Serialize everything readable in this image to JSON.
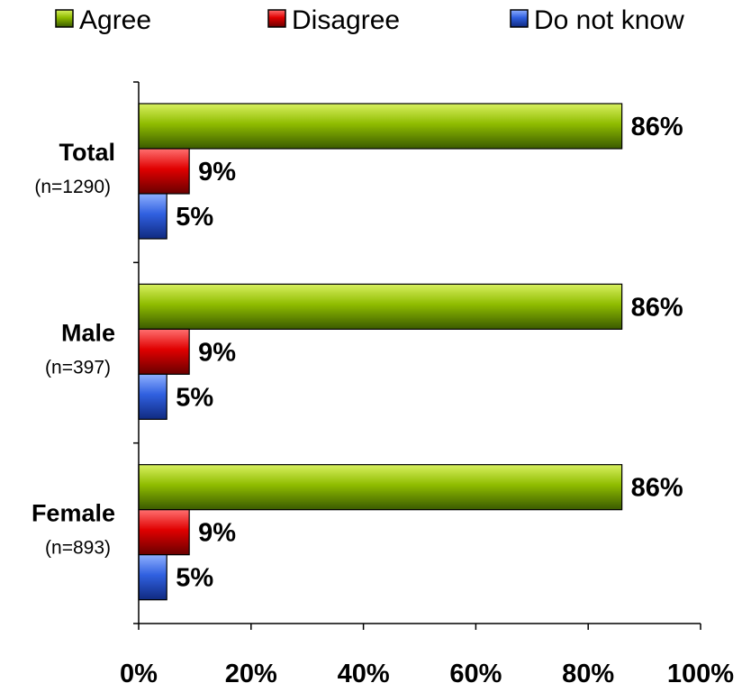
{
  "chart_data": {
    "type": "bar",
    "orientation": "horizontal",
    "categories": [
      "Total",
      "Male",
      "Female"
    ],
    "category_subtitles": [
      "(n=1290)",
      "(n=397)",
      "(n=893)"
    ],
    "series": [
      {
        "name": "Agree",
        "color": "#8fbc00",
        "values": [
          86,
          86,
          86
        ],
        "labels": [
          "86%",
          "86%",
          "86%"
        ]
      },
      {
        "name": "Disagree",
        "color": "#e00000",
        "values": [
          9,
          9,
          9
        ],
        "labels": [
          "9%",
          "9%",
          "9%"
        ]
      },
      {
        "name": "Do not know",
        "color": "#3060e0",
        "values": [
          5,
          5,
          5
        ],
        "labels": [
          "5%",
          "5%",
          "5%"
        ]
      }
    ],
    "xlim": [
      0,
      100
    ],
    "xticks": [
      0,
      20,
      40,
      60,
      80,
      100
    ],
    "xtick_labels": [
      "0%",
      "20%",
      "40%",
      "60%",
      "80%",
      "100%"
    ],
    "legend_position": "top",
    "grid": false
  }
}
